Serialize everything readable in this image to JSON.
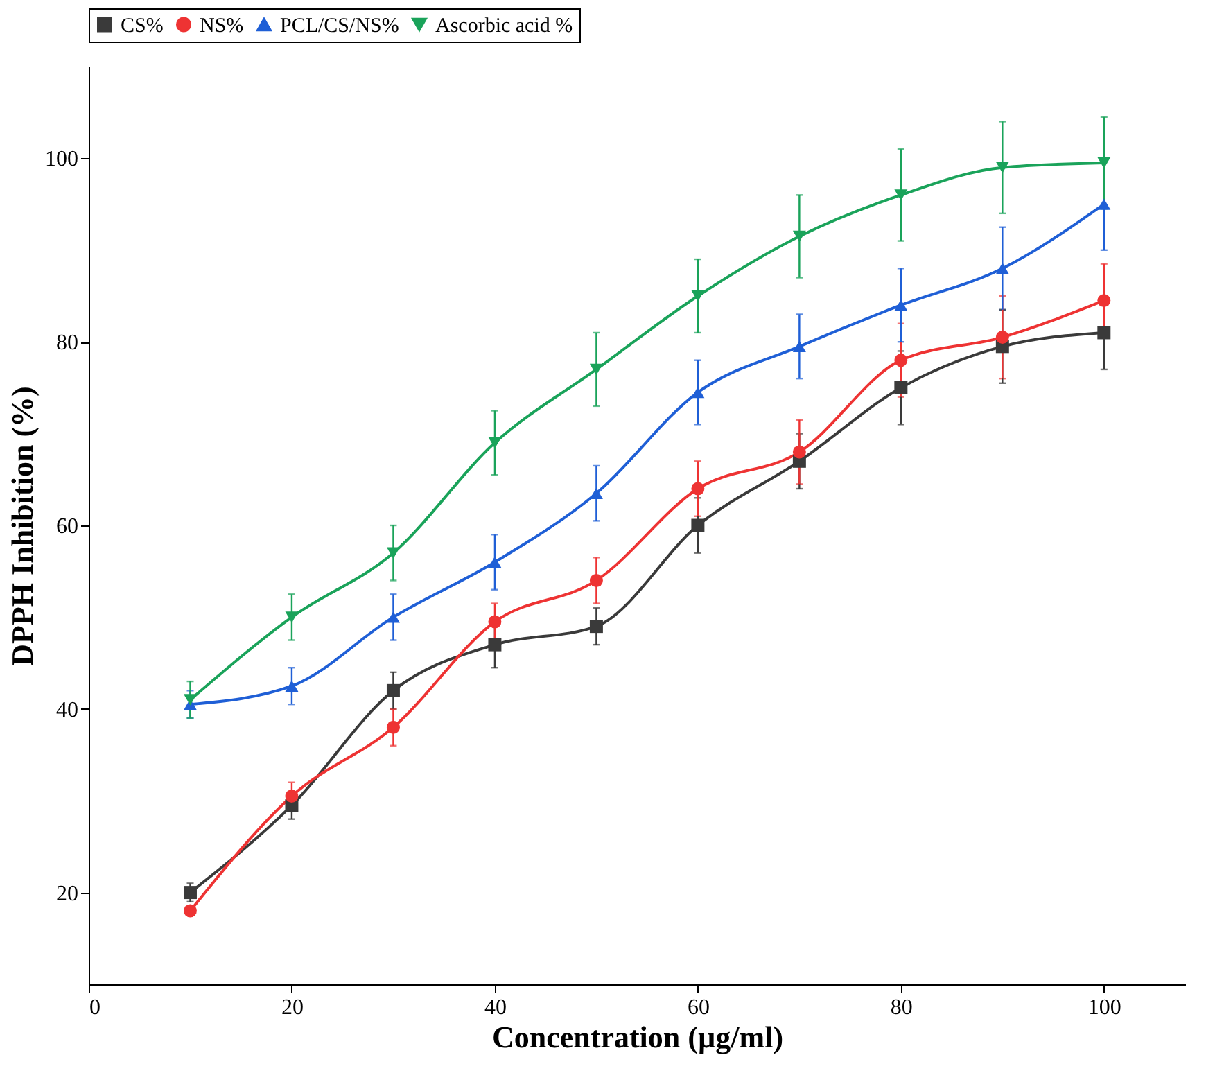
{
  "chart_data": {
    "type": "line",
    "xlabel": "Concentration (µg/ml)",
    "ylabel": "DPPH Inhibition (%)",
    "x": [
      10,
      20,
      30,
      40,
      50,
      60,
      70,
      80,
      90,
      100
    ],
    "series": [
      {
        "name": "CS%",
        "color": "#3a3a3a",
        "marker": "square",
        "values": [
          20,
          29.5,
          42,
          47,
          49,
          60,
          67,
          75,
          79.5,
          81
        ],
        "errors": [
          1,
          1.5,
          2,
          2.5,
          2,
          3,
          3,
          4,
          4,
          4
        ]
      },
      {
        "name": "NS%",
        "color": "#ee3333",
        "marker": "circle",
        "values": [
          18,
          30.5,
          38,
          49.5,
          54,
          64,
          68,
          78,
          80.5,
          84.5
        ],
        "errors": [
          0.5,
          1.5,
          2,
          2,
          2.5,
          3,
          3.5,
          4,
          4.5,
          4
        ]
      },
      {
        "name": "PCL/CS/NS%",
        "color": "#1f5fd6",
        "marker": "triangle",
        "values": [
          40.5,
          42.5,
          50,
          56,
          63.5,
          74.5,
          79.5,
          84,
          88,
          95
        ],
        "errors": [
          1.5,
          2,
          2.5,
          3,
          3,
          3.5,
          3.5,
          4,
          4.5,
          5
        ]
      },
      {
        "name": "Ascorbic acid %",
        "color": "#1aa35a",
        "marker": "triangle-down",
        "values": [
          41,
          50,
          57,
          69,
          77,
          85,
          91.5,
          96,
          99,
          99.5
        ],
        "errors": [
          2,
          2.5,
          3,
          3.5,
          4,
          4,
          4.5,
          5,
          5,
          5
        ]
      }
    ],
    "xlim": [
      0,
      108
    ],
    "xticks": [
      0,
      20,
      40,
      60,
      80,
      100
    ],
    "ylim": [
      10,
      110
    ],
    "yticks": [
      20,
      40,
      60,
      80,
      100
    ],
    "grid": false,
    "legend": "top",
    "line_style": "solid"
  }
}
